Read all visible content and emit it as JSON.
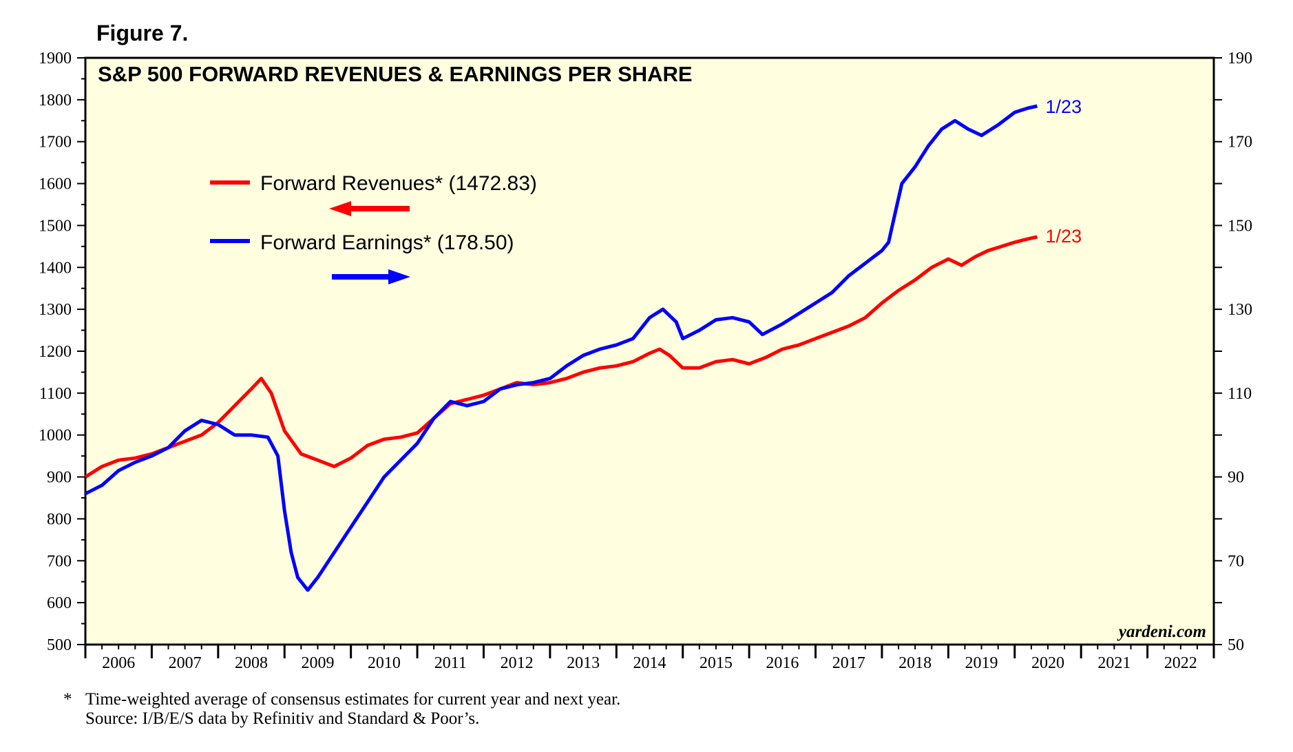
{
  "figure_label": "Figure 7.",
  "footnote": {
    "marker": "*",
    "line1": "Time-weighted average of consensus estimates for current year and next year.",
    "line2": "Source: I/B/E/S data by Refinitiv and Standard & Poor’s."
  },
  "colors": {
    "revenues": "#ff0000",
    "earnings": "#0000ff",
    "plot_bg": "#ffffe0",
    "axis": "#000000"
  },
  "chart_data": {
    "type": "line",
    "title": "S&P 500 FORWARD REVENUES & EARNINGS PER SHARE",
    "watermark": "yardeni.com",
    "x_labels": [
      "2006",
      "2007",
      "2008",
      "2009",
      "2010",
      "2011",
      "2012",
      "2013",
      "2014",
      "2015",
      "2016",
      "2017",
      "2018",
      "2019",
      "2020",
      "2021",
      "2022"
    ],
    "x_range": [
      2006,
      2023
    ],
    "left_axis": {
      "min": 500,
      "max": 1900,
      "step": 100,
      "ticks": [
        "500",
        "600",
        "700",
        "800",
        "900",
        "1000",
        "1100",
        "1200",
        "1300",
        "1400",
        "1500",
        "1600",
        "1700",
        "1800",
        "1900"
      ]
    },
    "right_axis": {
      "min": 50,
      "max": 190,
      "step": 20,
      "ticks": [
        "50",
        "70",
        "90",
        "110",
        "130",
        "150",
        "170",
        "190"
      ]
    },
    "series": [
      {
        "name": "Forward Revenues*",
        "legend_label": "Forward Revenues* (1472.83)",
        "axis": "left",
        "end_label": "1/23",
        "points": [
          [
            2006.0,
            900
          ],
          [
            2006.25,
            925
          ],
          [
            2006.5,
            940
          ],
          [
            2006.75,
            945
          ],
          [
            2007.0,
            955
          ],
          [
            2007.25,
            970
          ],
          [
            2007.5,
            985
          ],
          [
            2007.75,
            1000
          ],
          [
            2008.0,
            1030
          ],
          [
            2008.25,
            1070
          ],
          [
            2008.5,
            1110
          ],
          [
            2008.65,
            1135
          ],
          [
            2008.8,
            1100
          ],
          [
            2009.0,
            1010
          ],
          [
            2009.25,
            955
          ],
          [
            2009.5,
            940
          ],
          [
            2009.75,
            925
          ],
          [
            2010.0,
            945
          ],
          [
            2010.25,
            975
          ],
          [
            2010.5,
            990
          ],
          [
            2010.75,
            995
          ],
          [
            2011.0,
            1005
          ],
          [
            2011.25,
            1040
          ],
          [
            2011.5,
            1075
          ],
          [
            2011.75,
            1085
          ],
          [
            2012.0,
            1095
          ],
          [
            2012.25,
            1110
          ],
          [
            2012.5,
            1125
          ],
          [
            2012.75,
            1120
          ],
          [
            2013.0,
            1125
          ],
          [
            2013.25,
            1135
          ],
          [
            2013.5,
            1150
          ],
          [
            2013.75,
            1160
          ],
          [
            2014.0,
            1165
          ],
          [
            2014.25,
            1175
          ],
          [
            2014.5,
            1195
          ],
          [
            2014.65,
            1205
          ],
          [
            2014.8,
            1190
          ],
          [
            2015.0,
            1160
          ],
          [
            2015.25,
            1160
          ],
          [
            2015.5,
            1175
          ],
          [
            2015.75,
            1180
          ],
          [
            2016.0,
            1170
          ],
          [
            2016.25,
            1185
          ],
          [
            2016.5,
            1205
          ],
          [
            2016.75,
            1215
          ],
          [
            2017.0,
            1230
          ],
          [
            2017.25,
            1245
          ],
          [
            2017.5,
            1260
          ],
          [
            2017.75,
            1280
          ],
          [
            2018.0,
            1315
          ],
          [
            2018.25,
            1345
          ],
          [
            2018.5,
            1370
          ],
          [
            2018.75,
            1400
          ],
          [
            2019.0,
            1420
          ],
          [
            2019.2,
            1405
          ],
          [
            2019.4,
            1425
          ],
          [
            2019.6,
            1440
          ],
          [
            2019.8,
            1450
          ],
          [
            2020.0,
            1460
          ],
          [
            2020.2,
            1468
          ],
          [
            2020.34,
            1472.83
          ]
        ]
      },
      {
        "name": "Forward Earnings*",
        "legend_label": "Forward Earnings* (178.50)",
        "axis": "right",
        "end_label": "1/23",
        "points": [
          [
            2006.0,
            86
          ],
          [
            2006.25,
            88
          ],
          [
            2006.5,
            91.5
          ],
          [
            2006.75,
            93.5
          ],
          [
            2007.0,
            95
          ],
          [
            2007.25,
            97
          ],
          [
            2007.5,
            101
          ],
          [
            2007.75,
            103.5
          ],
          [
            2008.0,
            102.5
          ],
          [
            2008.25,
            100
          ],
          [
            2008.5,
            100
          ],
          [
            2008.75,
            99.5
          ],
          [
            2008.9,
            95
          ],
          [
            2009.0,
            82
          ],
          [
            2009.1,
            72
          ],
          [
            2009.2,
            66
          ],
          [
            2009.35,
            63
          ],
          [
            2009.5,
            66
          ],
          [
            2009.75,
            72
          ],
          [
            2010.0,
            78
          ],
          [
            2010.25,
            84
          ],
          [
            2010.5,
            90
          ],
          [
            2010.75,
            94
          ],
          [
            2011.0,
            98
          ],
          [
            2011.25,
            104
          ],
          [
            2011.5,
            108
          ],
          [
            2011.75,
            107
          ],
          [
            2012.0,
            108
          ],
          [
            2012.25,
            111
          ],
          [
            2012.5,
            112
          ],
          [
            2012.75,
            112.5
          ],
          [
            2013.0,
            113.5
          ],
          [
            2013.25,
            116.5
          ],
          [
            2013.5,
            119
          ],
          [
            2013.75,
            120.5
          ],
          [
            2014.0,
            121.5
          ],
          [
            2014.25,
            123
          ],
          [
            2014.5,
            128
          ],
          [
            2014.7,
            130
          ],
          [
            2014.9,
            127
          ],
          [
            2015.0,
            123
          ],
          [
            2015.25,
            125
          ],
          [
            2015.5,
            127.5
          ],
          [
            2015.75,
            128
          ],
          [
            2016.0,
            127
          ],
          [
            2016.2,
            124
          ],
          [
            2016.5,
            126.5
          ],
          [
            2016.75,
            129
          ],
          [
            2017.0,
            131.5
          ],
          [
            2017.25,
            134
          ],
          [
            2017.5,
            138
          ],
          [
            2017.75,
            141
          ],
          [
            2018.0,
            144
          ],
          [
            2018.1,
            146
          ],
          [
            2018.2,
            153
          ],
          [
            2018.3,
            160
          ],
          [
            2018.5,
            164
          ],
          [
            2018.7,
            169
          ],
          [
            2018.9,
            173
          ],
          [
            2019.1,
            175
          ],
          [
            2019.3,
            173
          ],
          [
            2019.5,
            171.5
          ],
          [
            2019.75,
            174
          ],
          [
            2020.0,
            177
          ],
          [
            2020.2,
            178
          ],
          [
            2020.34,
            178.5
          ]
        ]
      }
    ]
  }
}
